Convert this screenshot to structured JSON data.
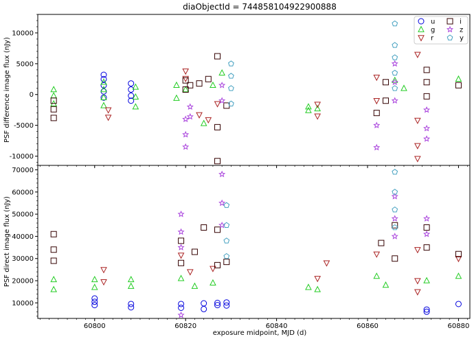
{
  "title": "diaObjectId = 744858104922900888",
  "xlabel": "exposure midpoint, MJD (d)",
  "colors": {
    "u": "#0000dd",
    "g": "#22cc22",
    "r": "#aa2222",
    "i": "#330000",
    "z": "#aa44dd",
    "y": "#44a0c0"
  },
  "chart_data": [
    {
      "type": "scatter",
      "panel": "top",
      "ylabel": "PSF difference image flux (nJy)",
      "xlim": [
        60787.5,
        60882.5
      ],
      "ylim": [
        -11500,
        13000
      ],
      "xticks": [
        60800,
        60820,
        60840,
        60860,
        60880
      ],
      "yticks": [
        -10000,
        -5000,
        0,
        5000,
        10000
      ],
      "series": [
        {
          "name": "u",
          "marker": "circle",
          "x": [
            60802,
            60802,
            60802,
            60802,
            60802,
            60808,
            60808,
            60808,
            60808
          ],
          "y": [
            3200,
            2500,
            1500,
            500,
            -500,
            1800,
            800,
            -200,
            -1000
          ]
        },
        {
          "name": "g",
          "marker": "triangle-up",
          "x": [
            60791,
            60791,
            60791,
            60802,
            60802,
            60802,
            60802,
            60809,
            60809,
            60809,
            60818,
            60818,
            60820,
            60824,
            60826,
            60828,
            60847,
            60847,
            60849,
            60866,
            60868,
            60880
          ],
          "y": [
            800,
            -200,
            -1500,
            2000,
            800,
            -500,
            -1800,
            1200,
            -400,
            -2000,
            1500,
            -600,
            800,
            -4700,
            1500,
            3500,
            -2000,
            -2600,
            -2300,
            2300,
            1000,
            2500
          ]
        },
        {
          "name": "r",
          "marker": "triangle-down",
          "x": [
            60803,
            60803,
            60820,
            60820,
            60823,
            60825,
            60827,
            60849,
            60849,
            60862,
            60862,
            60871,
            60871,
            60871,
            60871
          ],
          "y": [
            -2500,
            -3700,
            3800,
            2600,
            -3300,
            -4100,
            -1500,
            -1600,
            -3500,
            2800,
            -1000,
            -10400,
            -8300,
            -4200,
            6500
          ]
        },
        {
          "name": "i",
          "marker": "square",
          "x": [
            60791,
            60791,
            60791,
            60820,
            60820,
            60821,
            60823,
            60825,
            60827,
            60827,
            60827,
            60829,
            60862,
            60864,
            60864,
            60873,
            60873,
            60873,
            60880
          ],
          "y": [
            -1000,
            -2400,
            -3800,
            2300,
            800,
            1500,
            1800,
            2500,
            6200,
            -5300,
            -10800,
            -1800,
            -3000,
            2000,
            -1000,
            4000,
            2000,
            -300,
            1500
          ]
        },
        {
          "name": "z",
          "marker": "star",
          "x": [
            60820,
            60820,
            60820,
            60821,
            60821,
            60828,
            60828,
            60862,
            60862,
            60866,
            60866,
            60866,
            60873,
            60873,
            60873
          ],
          "y": [
            -4000,
            -6500,
            -8500,
            -2000,
            -3600,
            1500,
            -1000,
            -5000,
            -8600,
            5000,
            2000,
            -1000,
            -2500,
            -5500,
            -7200
          ]
        },
        {
          "name": "y",
          "marker": "pentagon",
          "x": [
            60830,
            60830,
            60830,
            60830,
            60866,
            60866,
            60866,
            60866,
            60866
          ],
          "y": [
            5000,
            3000,
            1000,
            -1500,
            11500,
            8000,
            6000,
            3500,
            1000
          ]
        }
      ]
    },
    {
      "type": "scatter",
      "panel": "bottom",
      "ylabel": "PSF direct image flux (nJy)",
      "xlim": [
        60787.5,
        60882.5
      ],
      "ylim": [
        3000,
        72000
      ],
      "xticks": [
        60800,
        60820,
        60840,
        60860,
        60880
      ],
      "yticks": [
        10000,
        20000,
        30000,
        40000,
        50000,
        60000,
        70000
      ],
      "series": [
        {
          "name": "u",
          "marker": "circle",
          "x": [
            60800,
            60800,
            60800,
            60808,
            60808,
            60819,
            60819,
            60824,
            60824,
            60827,
            60827,
            60829,
            60829,
            60873,
            60873,
            60880
          ],
          "y": [
            12000,
            10500,
            9000,
            9500,
            8000,
            7800,
            9500,
            7200,
            9800,
            10000,
            9000,
            10200,
            8800,
            7000,
            6000,
            9500
          ]
        },
        {
          "name": "g",
          "marker": "triangle-up",
          "x": [
            60791,
            60791,
            60800,
            60800,
            60808,
            60808,
            60819,
            60822,
            60826,
            60847,
            60849,
            60862,
            60864,
            60873,
            60880
          ],
          "y": [
            20500,
            16000,
            20500,
            17000,
            20500,
            17500,
            21000,
            17500,
            19000,
            17000,
            16000,
            22000,
            18000,
            20000,
            22000
          ]
        },
        {
          "name": "r",
          "marker": "triangle-down",
          "x": [
            60802,
            60802,
            60819,
            60821,
            60826,
            60849,
            60851,
            60862,
            60871,
            60871,
            60871,
            60880
          ],
          "y": [
            25000,
            19500,
            31500,
            24000,
            25500,
            21000,
            28000,
            32000,
            34000,
            20000,
            15000,
            30000
          ]
        },
        {
          "name": "i",
          "marker": "square",
          "x": [
            60791,
            60791,
            60791,
            60819,
            60819,
            60822,
            60824,
            60827,
            60827,
            60829,
            60863,
            60866,
            60866,
            60873,
            60873,
            60880
          ],
          "y": [
            41000,
            34000,
            29000,
            38000,
            28000,
            33000,
            44000,
            43000,
            27000,
            28500,
            37000,
            45000,
            30000,
            44000,
            35000,
            32000
          ]
        },
        {
          "name": "z",
          "marker": "star",
          "x": [
            60819,
            60819,
            60819,
            60819,
            60828,
            60828,
            60828,
            60866,
            60866,
            60866,
            60873,
            60873
          ],
          "y": [
            50000,
            42000,
            35000,
            4500,
            68000,
            55000,
            45000,
            58000,
            48000,
            40000,
            48000,
            41000
          ]
        },
        {
          "name": "y",
          "marker": "pentagon",
          "x": [
            60829,
            60829,
            60829,
            60829,
            60866,
            60866,
            60866,
            60866
          ],
          "y": [
            54000,
            45000,
            38000,
            31000,
            69000,
            60000,
            52000,
            44000
          ]
        }
      ]
    }
  ],
  "legend": {
    "placement": "top-right",
    "items": [
      "u",
      "i",
      "g",
      "z",
      "r",
      "y"
    ]
  }
}
